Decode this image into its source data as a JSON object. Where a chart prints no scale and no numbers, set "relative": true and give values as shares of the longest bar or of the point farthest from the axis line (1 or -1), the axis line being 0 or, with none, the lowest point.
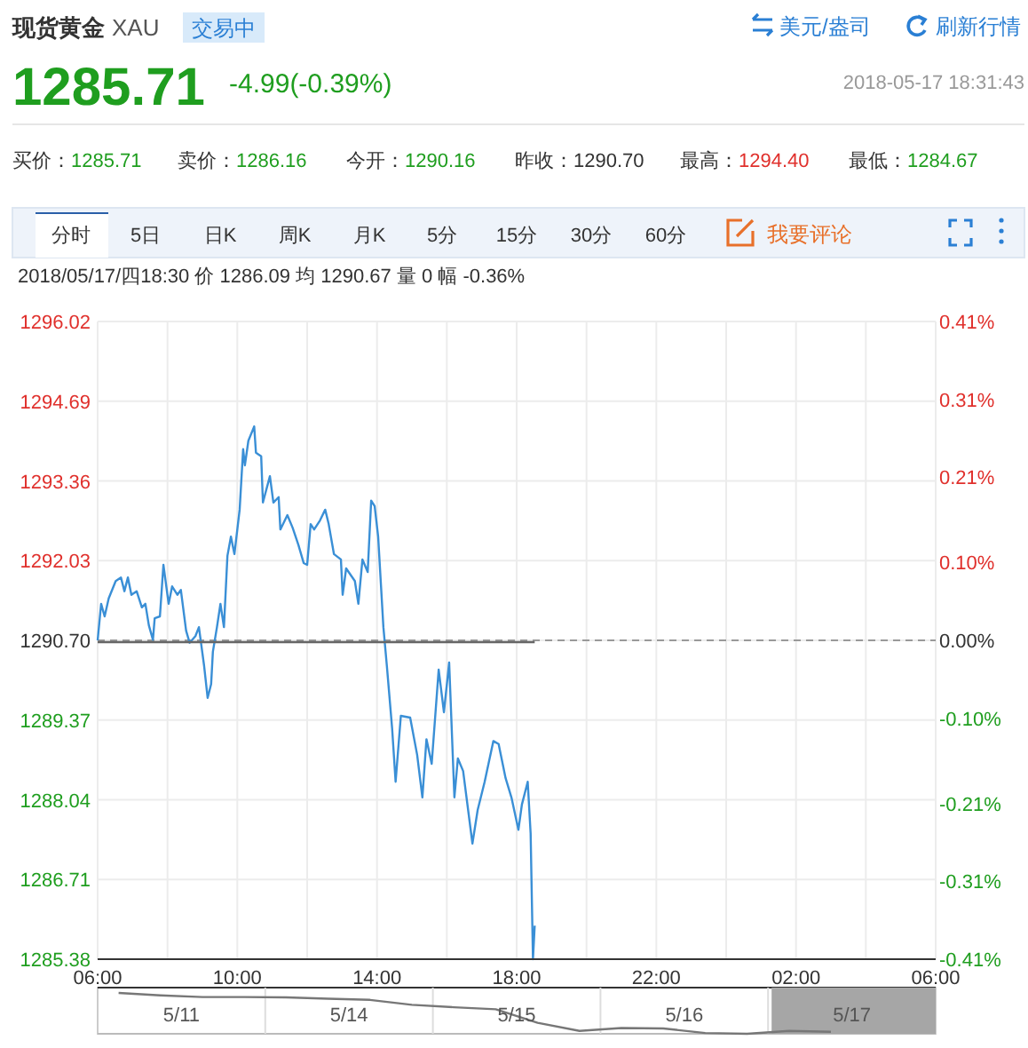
{
  "chart_data": [
    {
      "type": "other",
      "title": "现货黄金",
      "annotations": [
        "XAU",
        "交易中",
        "美元/盎司",
        "刷新行情",
        "1285.71",
        "-4.99(-0.39%)",
        "2018-05-17 18:31:43",
        "买价：",
        "1285.71",
        "卖价：",
        "1286.16",
        "今开：",
        "1290.16",
        "昨收：",
        "1290.70",
        "最高：",
        "1294.40",
        "最低：",
        "1284.67",
        "分时",
        "5日",
        "日K",
        "周K",
        "月K",
        "5分",
        "15分",
        "30分",
        "60分",
        "我要评论",
        "2018/05/17/四18:30  价 1286.09  均 1290.67  量 0  幅 -0.36%"
      ]
    },
    {
      "type": "line",
      "xlim": [
        "2018-05-17T06:00",
        "2018-05-18T06:00"
      ],
      "xticks": [
        {
          "value": "2018-05-17T06:00",
          "label": "06:00"
        },
        {
          "value": "2018-05-17T08:00",
          "label": null
        },
        {
          "value": "2018-05-17T10:00",
          "label": "10:00"
        },
        {
          "value": "2018-05-17T12:00",
          "label": null
        },
        {
          "value": "2018-05-17T14:00",
          "label": "14:00"
        },
        {
          "value": "2018-05-17T16:00",
          "label": null
        },
        {
          "value": "2018-05-17T18:00",
          "label": "18:00"
        },
        {
          "value": "2018-05-17T20:00",
          "label": null
        },
        {
          "value": "2018-05-17T22:00",
          "label": "22:00"
        },
        {
          "value": "2018-05-18T00:00",
          "label": null
        },
        {
          "value": "2018-05-18T02:00",
          "label": "02:00"
        },
        {
          "value": "2018-05-18T04:00",
          "label": null
        },
        {
          "value": "2018-05-18T06:00",
          "label": "06:00"
        }
      ],
      "ylim": [
        1285.38,
        1296.02
      ],
      "yticks": [
        {
          "value": 1285.38,
          "label": "1285.38"
        },
        {
          "value": 1286.71,
          "label": "1286.71"
        },
        {
          "value": 1288.04,
          "label": "1288.04"
        },
        {
          "value": 1289.37,
          "label": "1289.37"
        },
        {
          "value": 1290.7,
          "label": "1290.70"
        },
        {
          "value": 1292.03,
          "label": "1292.03"
        },
        {
          "value": 1293.36,
          "label": "1293.36"
        },
        {
          "value": 1294.69,
          "label": "1294.69"
        },
        {
          "value": 1296.02,
          "label": "1296.02"
        }
      ],
      "y2lim": [
        -0.41,
        0.41
      ],
      "y2ticks": [
        {
          "value": -0.41,
          "label": "-0.41%"
        },
        {
          "value": -0.31,
          "label": "-0.31%"
        },
        {
          "value": -0.21,
          "label": "-0.21%"
        },
        {
          "value": -0.1,
          "label": "-0.10%"
        },
        {
          "value": 0,
          "label": "0.00%"
        },
        {
          "value": 0.1,
          "label": "0.10%"
        },
        {
          "value": 0.21,
          "label": "0.21%"
        },
        {
          "value": 0.31,
          "label": "0.31%"
        },
        {
          "value": 0.41,
          "label": "0.41%"
        }
      ],
      "grid": true,
      "ref_lines": [
        {
          "axis": "y",
          "value": 1290.7,
          "color": "#999999",
          "line_style": "dashed"
        }
      ],
      "series": [
        {
          "color": "#3a8fd6",
          "x": [
            "2018-05-17T06:00",
            "2018-05-17T06:06",
            "2018-05-17T06:12",
            "2018-05-17T06:19",
            "2018-05-17T06:31",
            "2018-05-17T06:40",
            "2018-05-17T06:46",
            "2018-05-17T06:52",
            "2018-05-17T06:58",
            "2018-05-17T07:07",
            "2018-05-17T07:16",
            "2018-05-17T07:22",
            "2018-05-17T07:28",
            "2018-05-17T07:35",
            "2018-05-17T07:38",
            "2018-05-17T07:47",
            "2018-05-17T07:53",
            "2018-05-17T08:02",
            "2018-05-17T08:08",
            "2018-05-17T08:17",
            "2018-05-17T08:23",
            "2018-05-17T08:32",
            "2018-05-17T08:38",
            "2018-05-17T08:48",
            "2018-05-17T08:54",
            "2018-05-17T09:03",
            "2018-05-17T09:09",
            "2018-05-17T09:15",
            "2018-05-17T09:18",
            "2018-05-17T09:25",
            "2018-05-17T09:31",
            "2018-05-17T09:37",
            "2018-05-17T09:43",
            "2018-05-17T09:49",
            "2018-05-17T09:55",
            "2018-05-17T10:04",
            "2018-05-17T10:10",
            "2018-05-17T10:13",
            "2018-05-17T10:19",
            "2018-05-17T10:29",
            "2018-05-17T10:32",
            "2018-05-17T10:41",
            "2018-05-17T10:44",
            "2018-05-17T10:56",
            "2018-05-17T11:02",
            "2018-05-17T11:11",
            "2018-05-17T11:14",
            "2018-05-17T11:26",
            "2018-05-17T11:35",
            "2018-05-17T11:45",
            "2018-05-17T11:54",
            "2018-05-17T12:00",
            "2018-05-17T12:06",
            "2018-05-17T12:12",
            "2018-05-17T12:22",
            "2018-05-17T12:31",
            "2018-05-17T12:37",
            "2018-05-17T12:46",
            "2018-05-17T12:58",
            "2018-05-17T13:01",
            "2018-05-17T13:07",
            "2018-05-17T13:22",
            "2018-05-17T13:28",
            "2018-05-17T13:35",
            "2018-05-17T13:44",
            "2018-05-17T13:50",
            "2018-05-17T13:56",
            "2018-05-17T14:02",
            "2018-05-17T14:11",
            "2018-05-17T14:17",
            "2018-05-17T14:26",
            "2018-05-17T14:32",
            "2018-05-17T14:41",
            "2018-05-17T14:57",
            "2018-05-17T15:09",
            "2018-05-17T15:18",
            "2018-05-17T15:25",
            "2018-05-17T15:34",
            "2018-05-17T15:46",
            "2018-05-17T15:55",
            "2018-05-17T16:04",
            "2018-05-17T16:13",
            "2018-05-17T16:19",
            "2018-05-17T16:28",
            "2018-05-17T16:44",
            "2018-05-17T16:53",
            "2018-05-17T17:05",
            "2018-05-17T17:20",
            "2018-05-17T17:29",
            "2018-05-17T17:41",
            "2018-05-17T17:51",
            "2018-05-17T18:03",
            "2018-05-17T18:09",
            "2018-05-17T18:19",
            "2018-05-17T18:24",
            "2018-05-17T18:28",
            "2018-05-17T18:31"
          ],
          "values": [
            1290.7,
            1291.31,
            1291.1,
            1291.4,
            1291.69,
            1291.75,
            1291.52,
            1291.75,
            1291.46,
            1291.52,
            1291.25,
            1291.31,
            1290.95,
            1290.71,
            1291.07,
            1291.1,
            1291.96,
            1291.31,
            1291.6,
            1291.46,
            1291.54,
            1290.86,
            1290.66,
            1290.77,
            1290.92,
            1290.27,
            1289.74,
            1289.97,
            1290.51,
            1290.92,
            1291.31,
            1290.92,
            1292.11,
            1292.43,
            1292.14,
            1292.88,
            1293.89,
            1293.62,
            1294.03,
            1294.27,
            1293.83,
            1293.77,
            1293.0,
            1293.44,
            1293.0,
            1293.09,
            1292.55,
            1292.79,
            1292.58,
            1292.29,
            1291.99,
            1291.96,
            1292.64,
            1292.55,
            1292.7,
            1292.88,
            1292.64,
            1292.14,
            1292.05,
            1291.46,
            1291.9,
            1291.69,
            1291.31,
            1292.05,
            1291.84,
            1293.03,
            1292.94,
            1292.43,
            1290.92,
            1290.27,
            1289.23,
            1288.34,
            1289.44,
            1289.41,
            1288.79,
            1288.08,
            1289.05,
            1288.64,
            1290.21,
            1289.5,
            1290.33,
            1288.08,
            1288.73,
            1288.52,
            1287.31,
            1287.87,
            1288.34,
            1289.02,
            1288.97,
            1288.4,
            1288.08,
            1287.54,
            1287.96,
            1288.34,
            1287.48,
            1285.38,
            1285.94
          ]
        },
        {
          "color": "#666666",
          "x": [
            "2018-05-17T06:00",
            "2018-05-17T18:31"
          ],
          "values": [
            1290.67,
            1290.67
          ]
        }
      ]
    },
    {
      "type": "line",
      "relative": true,
      "categories": [
        null,
        null,
        null,
        null,
        null,
        null,
        null,
        null,
        null,
        null,
        null,
        null,
        null,
        null,
        null,
        null,
        null,
        null,
        null,
        null
      ],
      "annotations": [
        "5/11",
        "5/14",
        "5/15",
        "5/16",
        "5/17"
      ],
      "series": [
        {
          "color": "#777777",
          "values": [
            1,
            0.94,
            0.9,
            0.9,
            0.89,
            0.86,
            0.83,
            0.71,
            0.65,
            0.6,
            0.27,
            0.07,
            0.14,
            0.13,
            0.02,
            0,
            0.07,
            0.05,
            null,
            null
          ]
        }
      ]
    }
  ]
}
